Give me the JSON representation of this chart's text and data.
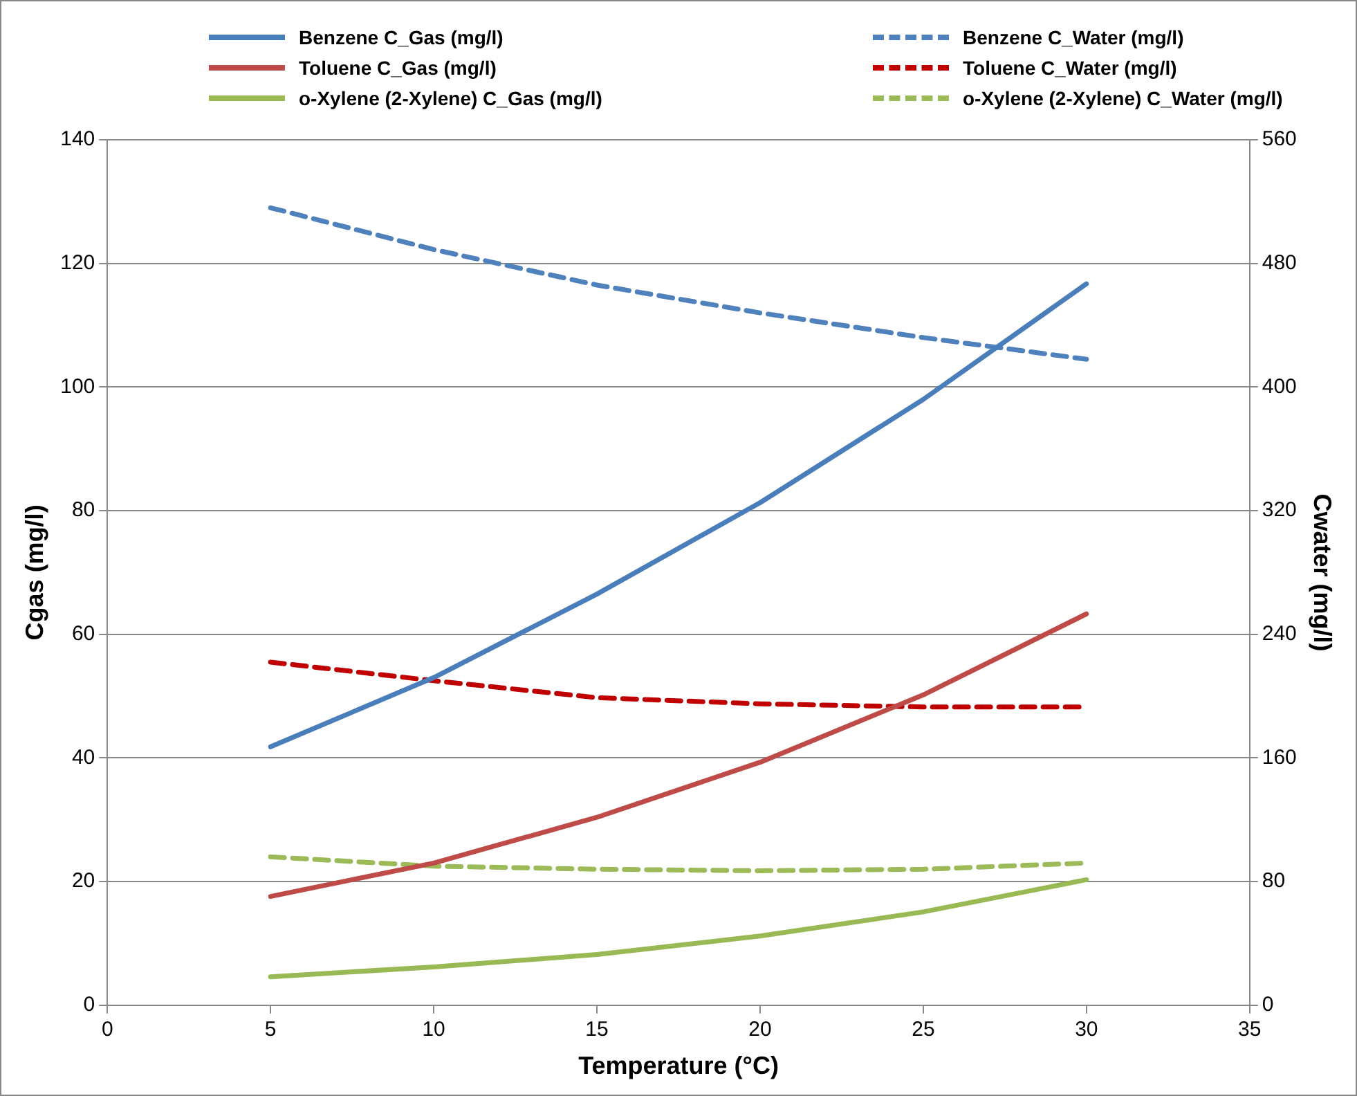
{
  "chart_data": {
    "type": "line",
    "xlabel": "Temperature (°C)",
    "ylabel": "Cgas (mg/l)",
    "y2label": "Cwater (mg/l)",
    "x": [
      5,
      10,
      15,
      20,
      25,
      30
    ],
    "series": [
      {
        "name": "Benzene C_Gas (mg/l)",
        "color": "#4a7ebb",
        "line_style": "solid",
        "values": [
          41.8,
          53,
          66.5,
          81.3,
          98,
          116.7
        ]
      },
      {
        "name": "Benzene C_Water (mg/l)",
        "color": "#4f81bd",
        "line_style": "dashed",
        "axis": "y2",
        "values": [
          516,
          489,
          466,
          448,
          432,
          418
        ]
      },
      {
        "name": "Toluene C_Gas (mg/l)",
        "color": "#be4b48",
        "line_style": "solid",
        "values": [
          17.6,
          23,
          30.4,
          39.3,
          50.2,
          63.3
        ]
      },
      {
        "name": "Toluene C_Water (mg/l)",
        "color": "#c00000",
        "line_style": "dashed",
        "axis": "y2",
        "values": [
          222,
          210,
          199,
          195,
          193,
          193
        ]
      },
      {
        "name": "o-Xylene (2-Xylene) C_Gas (mg/l)",
        "color": "#98b954",
        "line_style": "solid",
        "values": [
          4.6,
          6.2,
          8.2,
          11.2,
          15.1,
          20.3
        ]
      },
      {
        "name": "o-Xylene (2-Xylene) C_Water (mg/l)",
        "color": "#9bbb59",
        "line_style": "dashed",
        "axis": "y2",
        "values": [
          96,
          90,
          88,
          87,
          88,
          92
        ]
      }
    ],
    "xlim": [
      0,
      35
    ],
    "xticks": [
      0,
      5,
      10,
      15,
      20,
      25,
      30,
      35
    ],
    "ylim": [
      0,
      140
    ],
    "yticks": [
      0,
      20,
      40,
      60,
      80,
      100,
      120,
      140
    ],
    "y2lim": [
      0,
      560
    ],
    "y2ticks": [
      0,
      80,
      160,
      240,
      320,
      400,
      480,
      560
    ],
    "grid": "y",
    "legend": "top",
    "marker": "none"
  }
}
